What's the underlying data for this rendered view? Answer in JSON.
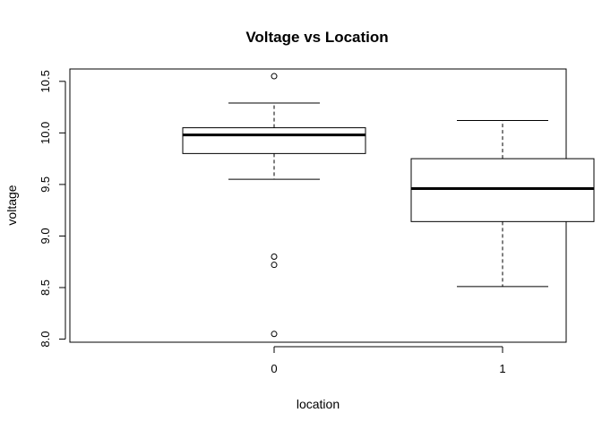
{
  "chart_data": {
    "type": "boxplot",
    "title": "Voltage vs Location",
    "xlabel": "location",
    "ylabel": "voltage",
    "ylim": [
      7.97,
      10.62
    ],
    "y_ticks": [
      "8.0",
      "8.5",
      "9.0",
      "9.5",
      "10.0",
      "10.5"
    ],
    "grid": false,
    "legend": "none",
    "categories": [
      "0",
      "1"
    ],
    "boxes": [
      {
        "category": "0",
        "whisker_low": 9.55,
        "q1": 9.8,
        "median": 9.98,
        "q3": 10.05,
        "whisker_high": 10.29,
        "outliers": [
          10.55,
          8.8,
          8.72,
          8.05
        ]
      },
      {
        "category": "1",
        "whisker_low": 8.51,
        "q1": 9.14,
        "median": 9.46,
        "q3": 9.75,
        "whisker_high": 10.12,
        "outliers": []
      }
    ]
  }
}
